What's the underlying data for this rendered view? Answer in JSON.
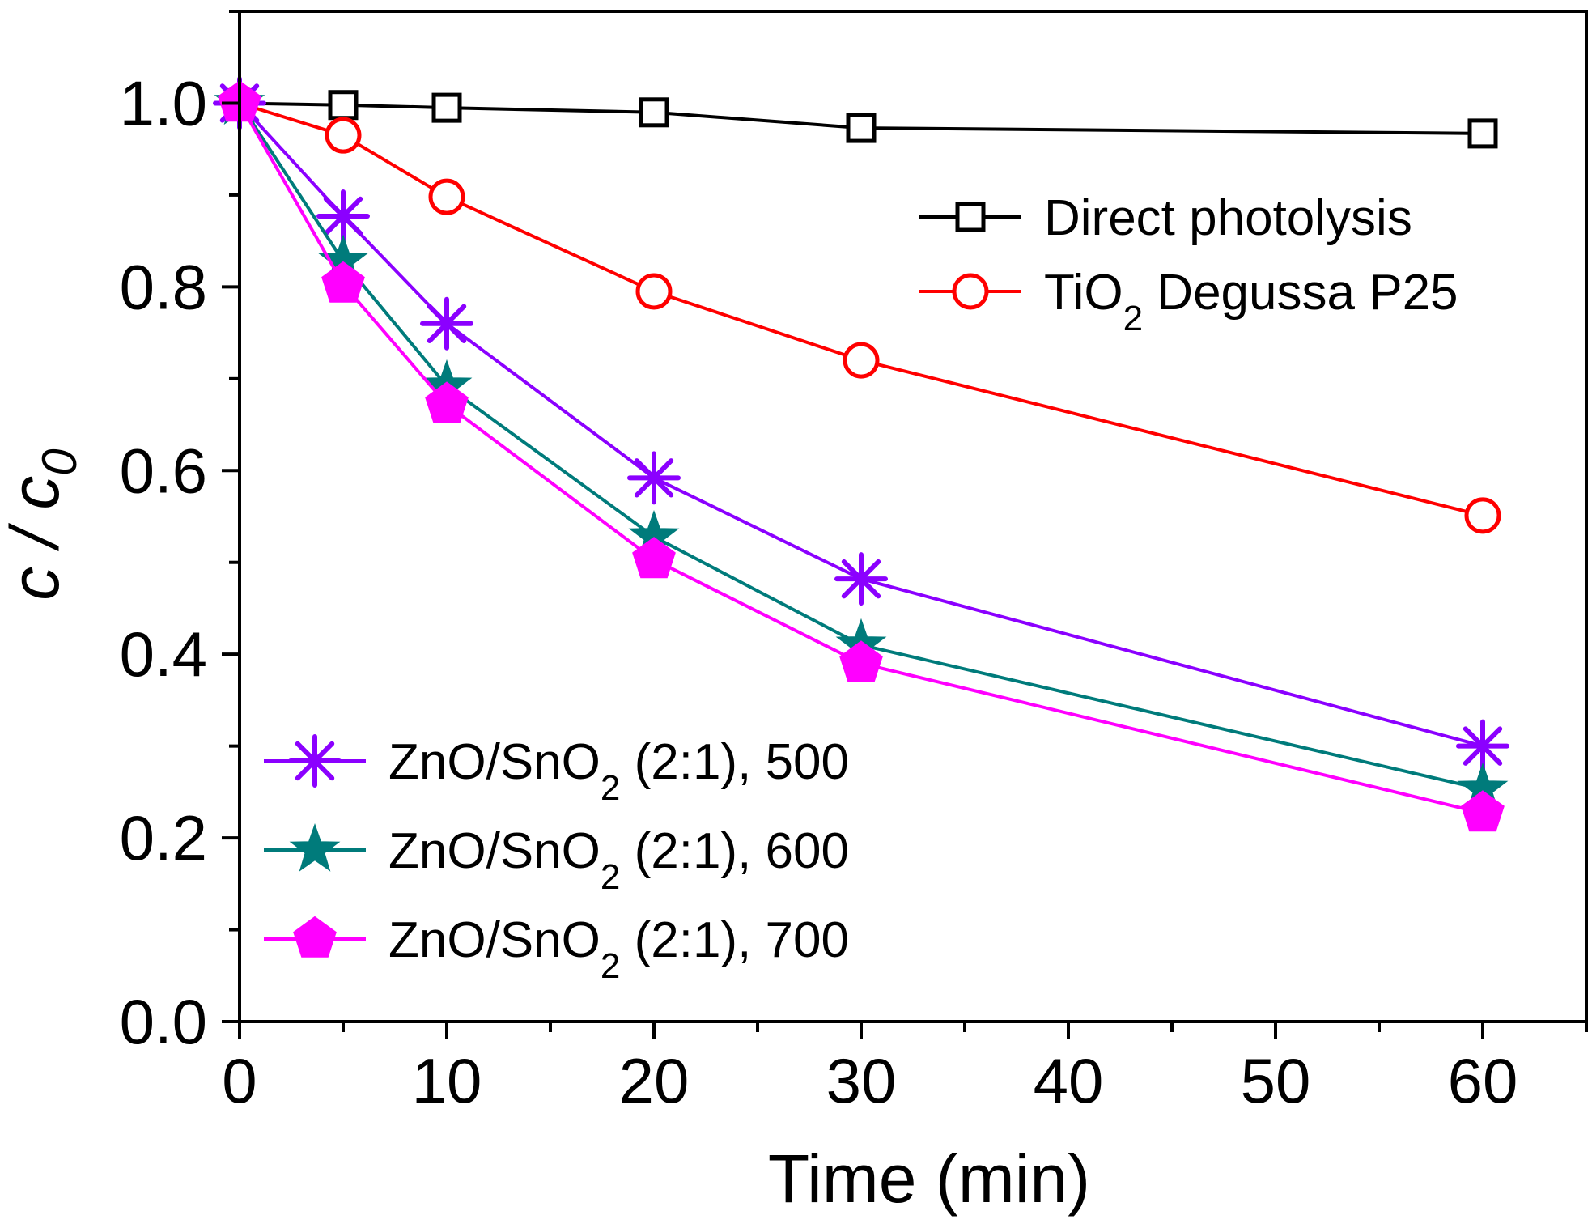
{
  "chart_data": {
    "type": "line",
    "title": "",
    "xlabel": "Time (min)",
    "ylabel": {
      "prefix": "c / c",
      "sub": "0"
    },
    "xlim": [
      0,
      65
    ],
    "ylim": [
      0,
      1.1
    ],
    "x_ticks": [
      "0",
      "10",
      "20",
      "30",
      "40",
      "50",
      "60"
    ],
    "y_ticks": [
      "0.0",
      "0.2",
      "0.4",
      "0.6",
      "0.8",
      "1.0"
    ],
    "x": [
      0,
      5,
      10,
      20,
      30,
      60
    ],
    "series": [
      {
        "name": "Direct photolysis",
        "label_main": "Direct photolysis",
        "label_sub": "",
        "label_tail": "",
        "color": "#000000",
        "marker": "square",
        "legend": "top-right",
        "values": [
          1.0,
          0.998,
          0.995,
          0.99,
          0.973,
          0.967
        ]
      },
      {
        "name": "TiO2 Degussa P25",
        "label_main": "TiO",
        "label_sub": "2",
        "label_tail": " Degussa P25",
        "color": "#ff0000",
        "marker": "circle",
        "legend": "top-right",
        "values": [
          1.0,
          0.965,
          0.898,
          0.795,
          0.72,
          0.551
        ]
      },
      {
        "name": "ZnO/SnO2 (2:1), 500",
        "label_main": "ZnO/SnO",
        "label_sub": "2",
        "label_tail": " (2:1), 500",
        "color": "#8b00ff",
        "marker": "asterisk",
        "legend": "bottom-left",
        "values": [
          1.0,
          0.877,
          0.76,
          0.592,
          0.482,
          0.3
        ]
      },
      {
        "name": "ZnO/SnO2 (2:1), 600",
        "label_main": "ZnO/SnO",
        "label_sub": "2",
        "label_tail": " (2:1), 600",
        "color": "#007b7b",
        "marker": "star",
        "legend": "bottom-left",
        "values": [
          1.0,
          0.828,
          0.692,
          0.528,
          0.41,
          0.253
        ]
      },
      {
        "name": "ZnO/SnO2 (2:1), 700",
        "label_main": "ZnO/SnO",
        "label_sub": "2",
        "label_tail": " (2:1), 700",
        "color": "#ff00ff",
        "marker": "pentagon",
        "legend": "bottom-left",
        "values": [
          1.0,
          0.803,
          0.672,
          0.503,
          0.39,
          0.227
        ]
      }
    ]
  }
}
